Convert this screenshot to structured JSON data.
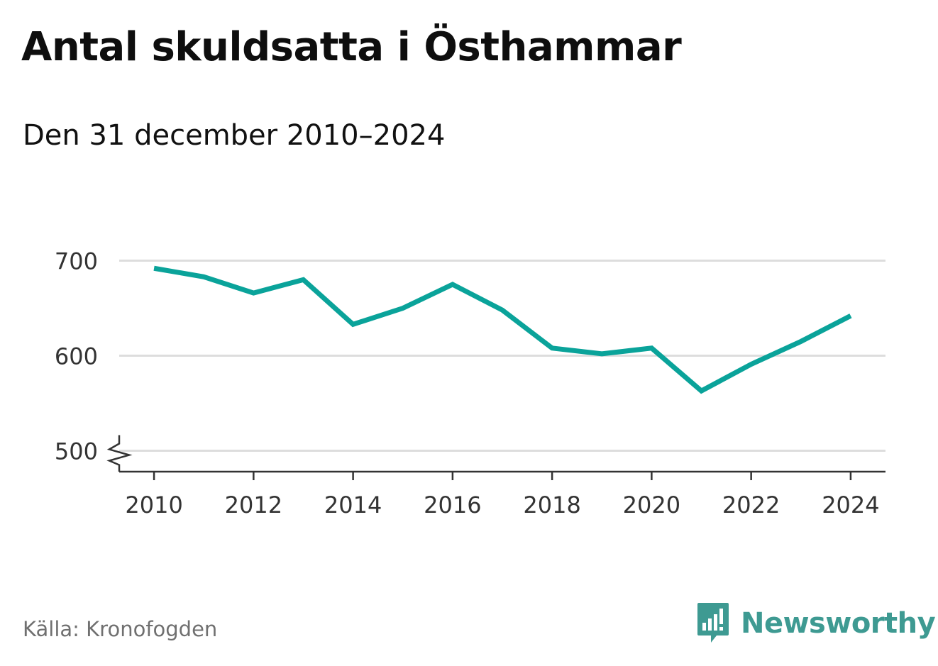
{
  "title": "Antal skuldsatta i Östhammar",
  "subtitle": "Den 31 december 2010–2024",
  "source": "Källa: Kronofogden",
  "brand": {
    "name": "Newsworthy",
    "icon": "newsworthy-logo-icon",
    "color": "#3e9a92"
  },
  "colors": {
    "line": "#0aa39a",
    "grid": "#dddddd",
    "axis": "#333333"
  },
  "chart_data": {
    "type": "line",
    "title": "Antal skuldsatta i Östhammar",
    "subtitle": "Den 31 december 2010–2024",
    "xlabel": "",
    "ylabel": "",
    "x": [
      2010,
      2011,
      2012,
      2013,
      2014,
      2015,
      2016,
      2017,
      2018,
      2019,
      2020,
      2021,
      2022,
      2023,
      2024
    ],
    "series": [
      {
        "name": "Antal skuldsatta",
        "values": [
          692,
          683,
          666,
          680,
          633,
          650,
          675,
          648,
          608,
          602,
          608,
          563,
          591,
          615,
          642
        ]
      }
    ],
    "xlim": [
      2009.3,
      2024.7
    ],
    "ylim": [
      478,
      728
    ],
    "y_ticks": [
      500,
      600,
      700
    ],
    "x_ticks": [
      2010,
      2012,
      2014,
      2016,
      2018,
      2020,
      2022,
      2024
    ],
    "y_tick_labels": [
      "500",
      "600",
      "700"
    ],
    "x_tick_labels": [
      "2010",
      "2012",
      "2014",
      "2016",
      "2018",
      "2020",
      "2022",
      "2024"
    ],
    "grid": true,
    "axis_break": true
  }
}
